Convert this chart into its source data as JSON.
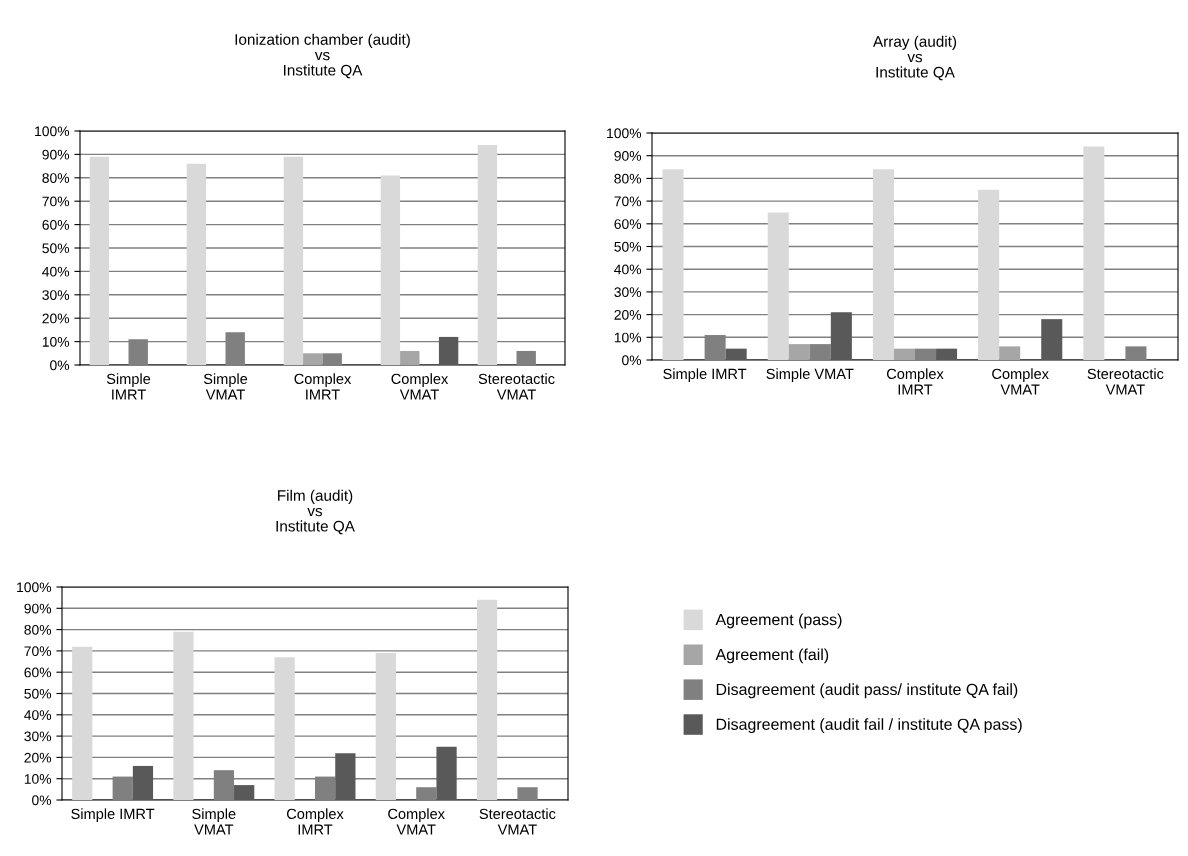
{
  "chart_data": [
    {
      "type": "bar",
      "title": "Ionization chamber (audit)\nvs\nInstitute QA",
      "categories": [
        "Simple\nIMRT",
        "Simple\nVMAT",
        "Complex\nIMRT",
        "Complex\nVMAT",
        "Stereotactic\nVMAT"
      ],
      "series": [
        {
          "color": "#d9d9d9",
          "values": [
            89,
            86,
            89,
            81,
            94
          ]
        },
        {
          "color": "#a6a6a6",
          "values": [
            null,
            null,
            5,
            6,
            null
          ]
        },
        {
          "color": "#808080",
          "values": [
            11,
            14,
            5,
            null,
            6
          ]
        },
        {
          "color": "#595959",
          "values": [
            null,
            null,
            null,
            12,
            null
          ]
        }
      ],
      "ylim": [
        0,
        100
      ],
      "yticks": [
        {
          "value": 0,
          "label": "0%"
        },
        {
          "value": 10,
          "label": "10%"
        },
        {
          "value": 20,
          "label": "20%"
        },
        {
          "value": 30,
          "label": "30%"
        },
        {
          "value": 40,
          "label": "40%"
        },
        {
          "value": 50,
          "label": "50%"
        },
        {
          "value": 60,
          "label": "60%"
        },
        {
          "value": 70,
          "label": "70%"
        },
        {
          "value": 80,
          "label": "80%"
        },
        {
          "value": 90,
          "label": "90%"
        },
        {
          "value": 100,
          "label": "100%"
        }
      ],
      "grid": "y"
    },
    {
      "type": "bar",
      "title": "Array (audit)\nvs\nInstitute QA",
      "categories": [
        "Simple IMRT",
        "Simple VMAT",
        "Complex\nIMRT",
        "Complex\nVMAT",
        "Stereotactic\nVMAT"
      ],
      "series": [
        {
          "color": "#d9d9d9",
          "values": [
            84,
            65,
            84,
            75,
            94
          ]
        },
        {
          "color": "#a6a6a6",
          "values": [
            null,
            7,
            5,
            6,
            null
          ]
        },
        {
          "color": "#808080",
          "values": [
            11,
            7,
            5,
            null,
            6
          ]
        },
        {
          "color": "#595959",
          "values": [
            5,
            21,
            5,
            18,
            null
          ]
        }
      ],
      "ylim": [
        0,
        100
      ],
      "yticks": [
        {
          "value": 0,
          "label": "0%"
        },
        {
          "value": 10,
          "label": "10%"
        },
        {
          "value": 20,
          "label": "20%"
        },
        {
          "value": 30,
          "label": "30%"
        },
        {
          "value": 40,
          "label": "40%"
        },
        {
          "value": 50,
          "label": "50%"
        },
        {
          "value": 60,
          "label": "60%"
        },
        {
          "value": 70,
          "label": "70%"
        },
        {
          "value": 80,
          "label": "80%"
        },
        {
          "value": 90,
          "label": "90%"
        },
        {
          "value": 100,
          "label": "100%"
        }
      ],
      "grid": "y"
    },
    {
      "type": "bar",
      "title": "Film (audit)\nvs\nInstitute QA",
      "categories": [
        "Simple IMRT",
        "Simple\nVMAT",
        "Complex\nIMRT",
        "Complex\nVMAT",
        "Stereotactic\nVMAT"
      ],
      "series": [
        {
          "name": "Agreement (pass)",
          "color": "#d9d9d9",
          "values": [
            72,
            79,
            67,
            69,
            94
          ]
        },
        {
          "name": "Agreement (fail)",
          "color": "#a6a6a6",
          "values": [
            null,
            null,
            null,
            null,
            null
          ]
        },
        {
          "name": "Disagreement (audit pass/ institute QA fail)",
          "color": "#808080",
          "values": [
            11,
            14,
            11,
            6,
            6
          ]
        },
        {
          "name": "Disagreement (audit fail / institute QA pass)",
          "color": "#595959",
          "values": [
            16,
            7,
            22,
            25,
            null
          ]
        }
      ],
      "ylim": [
        0,
        100
      ],
      "yticks": [
        {
          "value": 0,
          "label": "0%"
        },
        {
          "value": 10,
          "label": "10%"
        },
        {
          "value": 20,
          "label": "20%"
        },
        {
          "value": 30,
          "label": "30%"
        },
        {
          "value": 40,
          "label": "40%"
        },
        {
          "value": 50,
          "label": "50%"
        },
        {
          "value": 60,
          "label": "60%"
        },
        {
          "value": 70,
          "label": "70%"
        },
        {
          "value": 80,
          "label": "80%"
        },
        {
          "value": 90,
          "label": "90%"
        },
        {
          "value": 100,
          "label": "100%"
        }
      ],
      "grid": "y",
      "legend": "right"
    }
  ]
}
